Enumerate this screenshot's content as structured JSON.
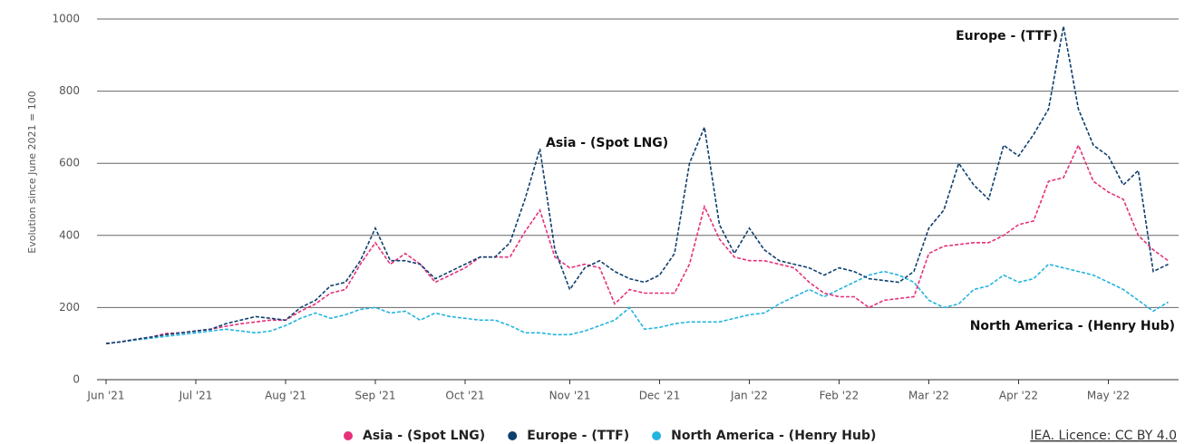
{
  "chart_data": {
    "type": "line",
    "ylabel": "Evolution since June 2021 = 100",
    "source": "IEA. Licence: CC BY 4.0",
    "categories": [
      "Jun '21",
      null,
      null,
      null,
      null,
      null,
      "Jul '21",
      null,
      null,
      null,
      null,
      null,
      "Aug '21",
      null,
      null,
      null,
      null,
      null,
      "Sep '21",
      null,
      null,
      null,
      null,
      null,
      "Oct '21",
      null,
      null,
      null,
      null,
      null,
      null,
      "Nov '21",
      null,
      null,
      null,
      null,
      null,
      "Dec '21",
      null,
      null,
      null,
      null,
      null,
      "Jan '22",
      null,
      null,
      null,
      null,
      null,
      "Feb '22",
      null,
      null,
      null,
      null,
      null,
      "Mar '22",
      null,
      null,
      null,
      null,
      null,
      "Apr '22",
      null,
      null,
      null,
      null,
      null,
      "May '22",
      null,
      null,
      null,
      null
    ],
    "series": [
      {
        "name": "Asia - (Spot LNG)",
        "color": "#e6317a",
        "values": [
          100,
          105,
          112,
          118,
          128,
          130,
          135,
          140,
          148,
          155,
          160,
          165,
          165,
          190,
          210,
          240,
          250,
          320,
          380,
          320,
          350,
          320,
          270,
          290,
          310,
          340,
          340,
          340,
          410,
          470,
          340,
          310,
          320,
          310,
          210,
          250,
          240,
          240,
          240,
          320,
          480,
          390,
          340,
          330,
          330,
          320,
          310,
          270,
          240,
          230,
          230,
          200,
          220,
          225,
          230,
          350,
          370,
          375,
          380,
          380,
          400,
          430,
          440,
          550,
          560,
          650,
          550,
          520,
          500,
          400,
          360,
          330
        ]
      },
      {
        "name": "Europe - (TTF)",
        "color": "#0e3f6e",
        "values": [
          100,
          105,
          112,
          118,
          125,
          130,
          135,
          140,
          155,
          165,
          175,
          170,
          165,
          200,
          220,
          260,
          270,
          330,
          420,
          330,
          330,
          320,
          280,
          300,
          320,
          340,
          340,
          380,
          500,
          640,
          360,
          250,
          310,
          330,
          300,
          280,
          270,
          290,
          350,
          600,
          700,
          430,
          350,
          420,
          360,
          330,
          320,
          310,
          290,
          310,
          300,
          280,
          275,
          270,
          300,
          420,
          470,
          600,
          540,
          500,
          650,
          620,
          680,
          750,
          980,
          750,
          650,
          620,
          540,
          580,
          300,
          320
        ]
      },
      {
        "name": "North America - (Henry Hub)",
        "color": "#22b4e0",
        "values": [
          100,
          105,
          110,
          115,
          120,
          125,
          130,
          135,
          140,
          135,
          130,
          135,
          150,
          170,
          185,
          170,
          180,
          195,
          200,
          185,
          190,
          165,
          185,
          175,
          170,
          165,
          165,
          150,
          130,
          130,
          125,
          125,
          135,
          150,
          165,
          200,
          140,
          145,
          155,
          160,
          160,
          160,
          170,
          180,
          185,
          210,
          230,
          250,
          230,
          250,
          270,
          290,
          300,
          290,
          270,
          220,
          200,
          210,
          250,
          260,
          290,
          270,
          280,
          320,
          310,
          300,
          290,
          270,
          250,
          220,
          190,
          215
        ]
      }
    ],
    "ylim": [
      0,
      1000
    ],
    "yticks": [
      0,
      200,
      400,
      600,
      800,
      1000
    ],
    "grid": true,
    "legend": "bottom"
  }
}
